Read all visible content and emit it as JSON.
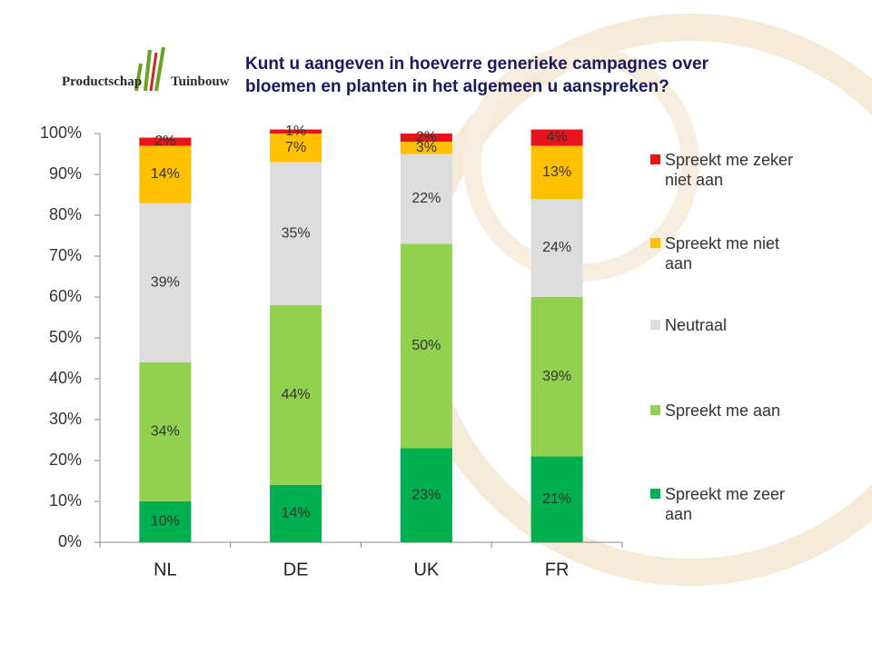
{
  "logo": [
    "Productschap",
    "Tuinbouw"
  ],
  "chart_data": {
    "type": "stacked_bar",
    "title": "Kunt u aangeven in hoeverre generieke  campagnes over bloemen en planten in het algemeen u aanspreken?",
    "categories": [
      "NL",
      "DE",
      "UK",
      "FR"
    ],
    "ylim": [
      0,
      100
    ],
    "yticks": [
      {
        "value": 0,
        "label": "0%"
      },
      {
        "value": 10,
        "label": "10%"
      },
      {
        "value": 20,
        "label": "20%"
      },
      {
        "value": 30,
        "label": "30%"
      },
      {
        "value": 40,
        "label": "40%"
      },
      {
        "value": 50,
        "label": "50%"
      },
      {
        "value": 60,
        "label": "60%"
      },
      {
        "value": 70,
        "label": "70%"
      },
      {
        "value": 80,
        "label": "80%"
      },
      {
        "value": 90,
        "label": "90%"
      },
      {
        "value": 100,
        "label": "100%"
      }
    ],
    "legend": "right",
    "series": [
      {
        "name": "Spreekt me zeer aan",
        "color": "#00b050",
        "values": [
          10,
          14,
          23,
          21
        ],
        "value_labels": [
          "10%",
          "14%",
          "23%",
          "21%"
        ]
      },
      {
        "name": "Spreekt me aan",
        "color": "#92d050",
        "values": [
          34,
          44,
          50,
          39
        ],
        "value_labels": [
          "34%",
          "44%",
          "50%",
          "39%"
        ]
      },
      {
        "name": "Neutraal",
        "color": "#dddddd",
        "values": [
          39,
          35,
          22,
          24
        ],
        "value_labels": [
          "39%",
          "35%",
          "22%",
          "24%"
        ]
      },
      {
        "name": "Spreekt me niet aan",
        "color": "#ffc000",
        "values": [
          14,
          7,
          3,
          13
        ],
        "value_labels": [
          "14%",
          "7%",
          "3%",
          "13%"
        ]
      },
      {
        "name": "Spreekt me zeker niet aan",
        "color": "#e8141b",
        "values": [
          2,
          1,
          2,
          4
        ],
        "value_labels": [
          "2%",
          "1%",
          "2%",
          "4%"
        ]
      }
    ]
  }
}
